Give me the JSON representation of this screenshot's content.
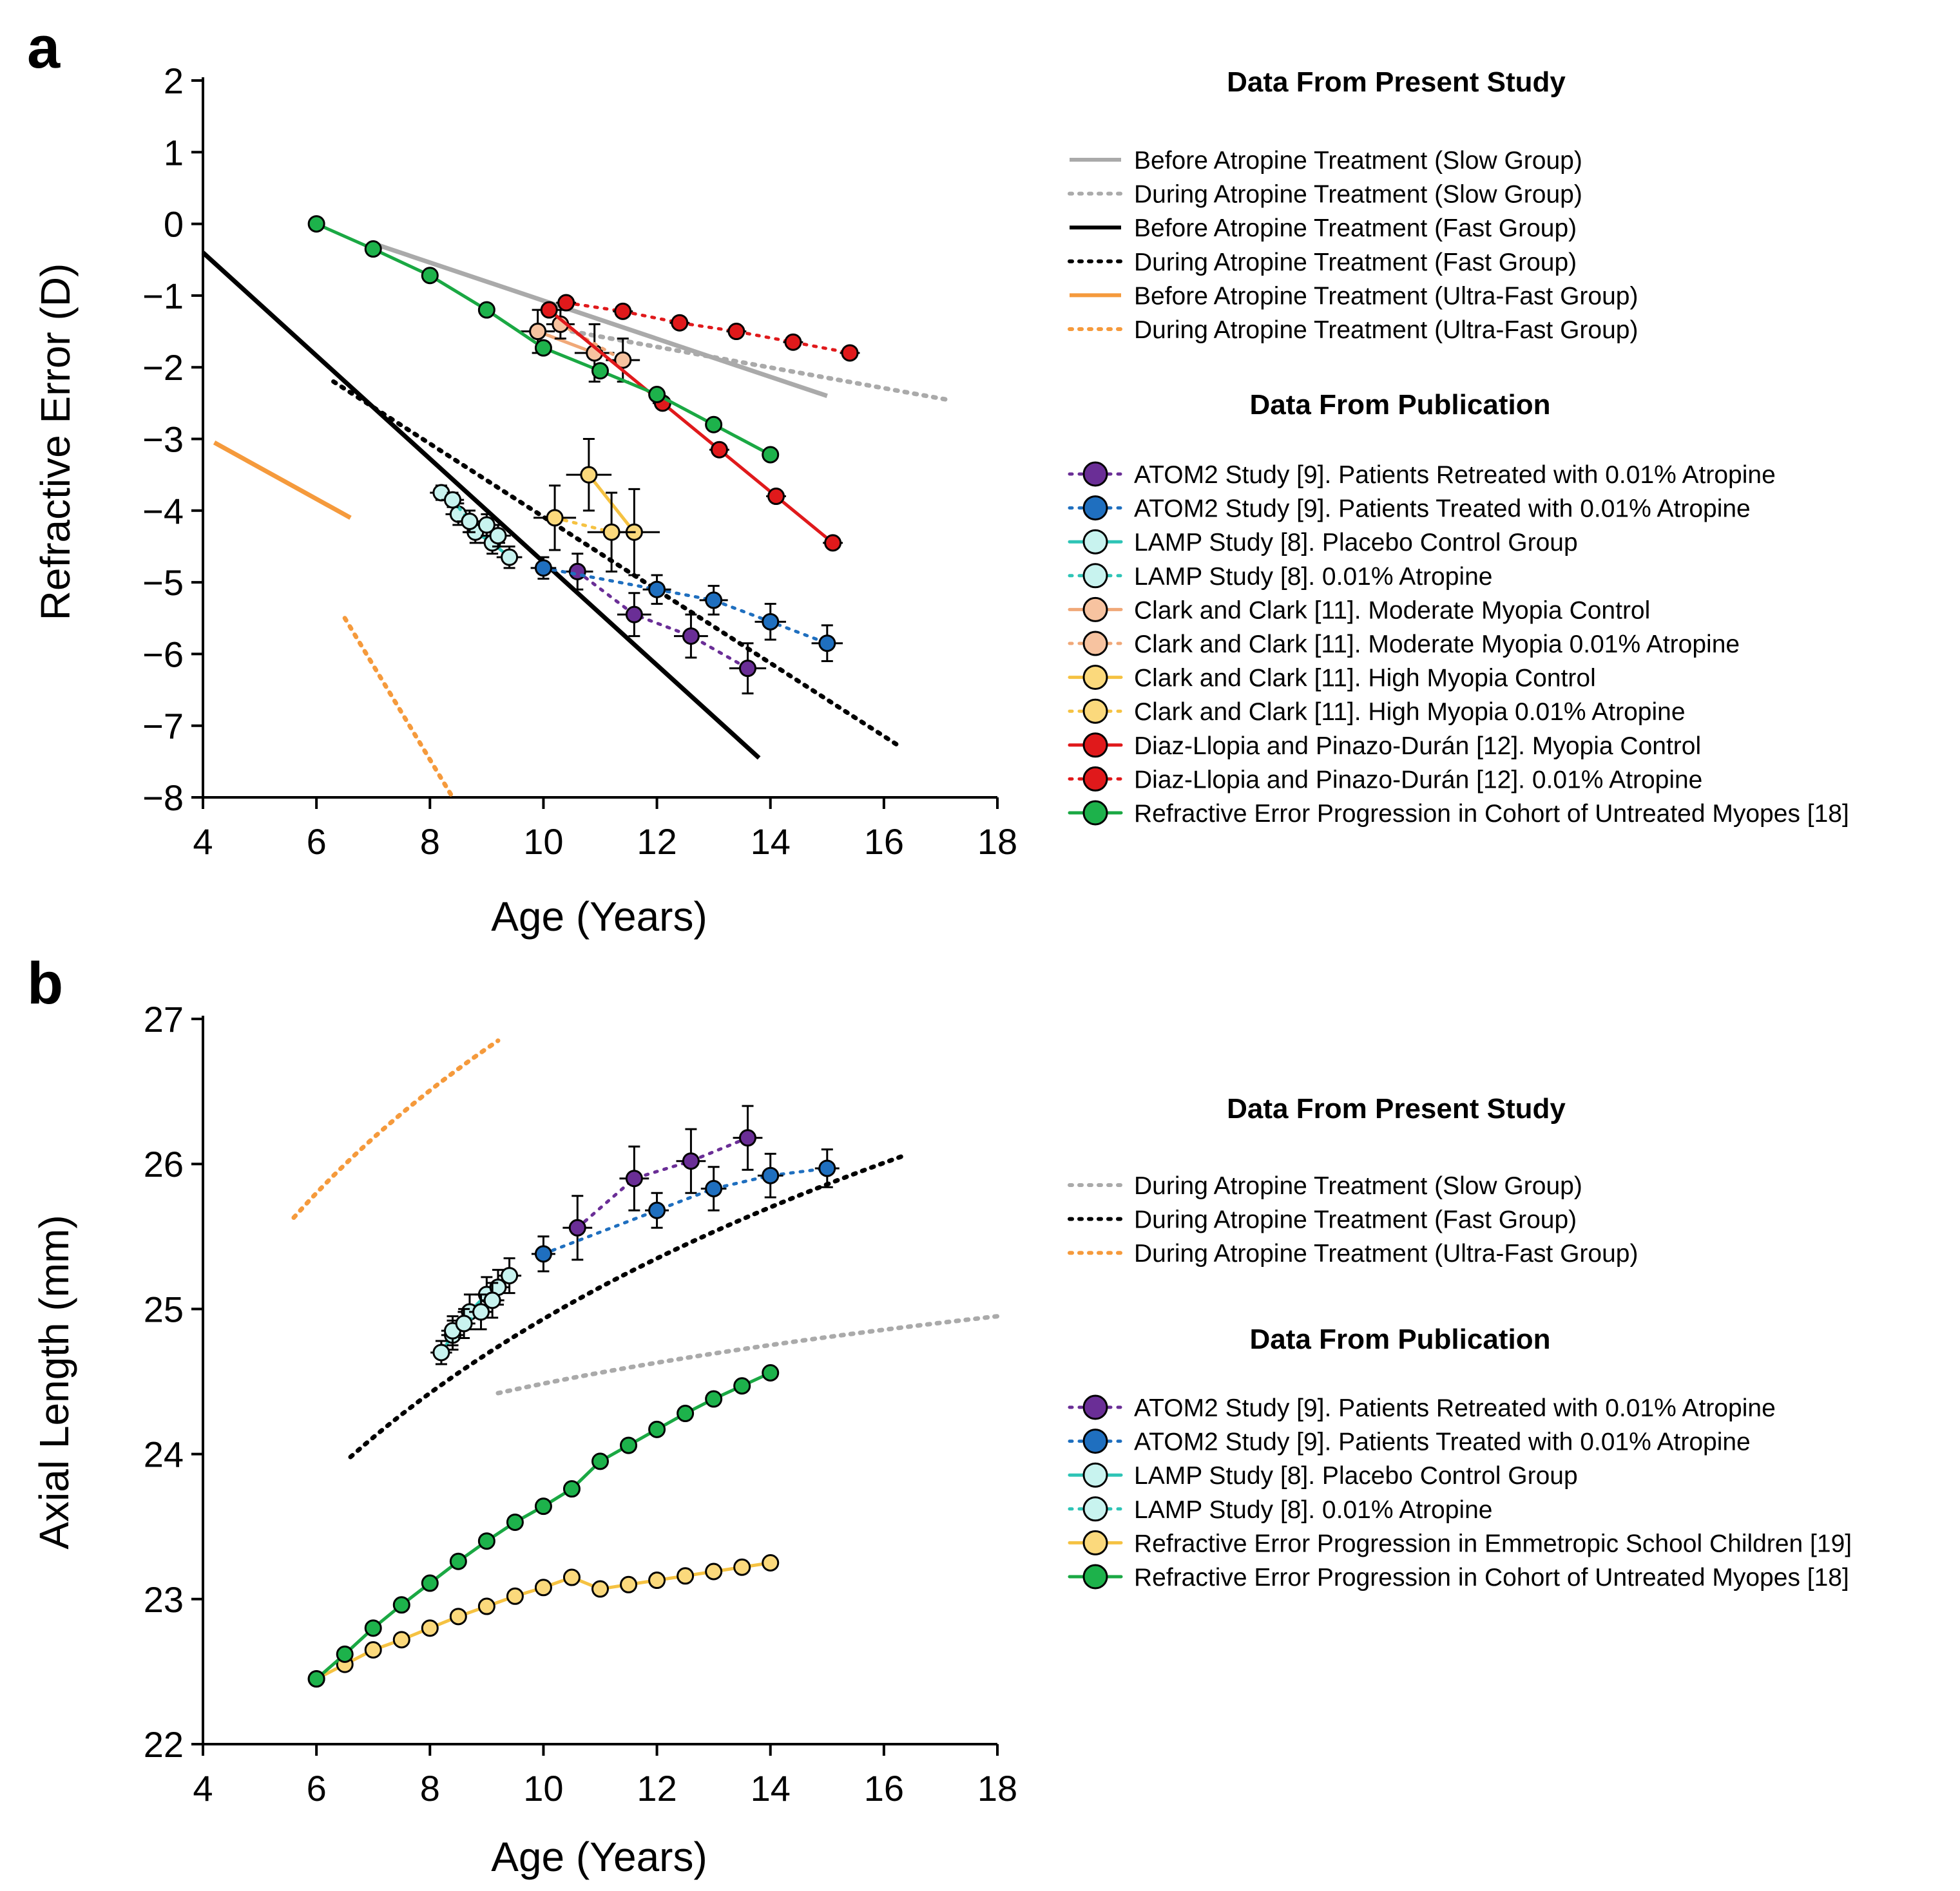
{
  "figure": {
    "colors": {
      "axis": "#000000",
      "gray": "#aaaaaa",
      "black": "#000000",
      "orange": "#f59a3c",
      "purple": "#6a2e96",
      "blue": "#1f6fbf",
      "teal": "#2ec4b6",
      "tealFill": "#c8f3ef",
      "peach": "#f0a878",
      "peachFill": "#f7c3a0",
      "yellow": "#f5c242",
      "yellowFill": "#fbd97c",
      "red": "#e0191b",
      "green": "#1aa843",
      "greenFill": "#1db24b"
    }
  },
  "chart_data": [
    {
      "type": "line",
      "panel_label": "a",
      "xlabel": "Age (Years)",
      "ylabel": "Refractive Error (D)",
      "xlim": [
        4,
        18
      ],
      "ylim": [
        -8,
        2
      ],
      "xticks": [
        "4",
        "6",
        "8",
        "10",
        "12",
        "14",
        "16",
        "18"
      ],
      "yticks": [
        "2",
        "1",
        "0",
        "−1",
        "−2",
        "−3",
        "−4",
        "−5",
        "−6",
        "−7",
        "−8"
      ],
      "legend_present_title": "Data From Present Study",
      "legend_publication_title": "Data From Publication",
      "present_series": [
        {
          "name": "Before Atropine Treatment (Slow Group)",
          "color": "gray",
          "style": "solid",
          "x": [
            7.1,
            15.0
          ],
          "y": [
            -0.3,
            -2.4
          ]
        },
        {
          "name": "During Atropine Treatment (Slow Group)",
          "color": "gray",
          "style": "dotted",
          "x": [
            10.5,
            17.1
          ],
          "y": [
            -1.5,
            -2.45
          ]
        },
        {
          "name": "Before Atropine Treatment (Fast Group)",
          "color": "black",
          "style": "solid",
          "x": [
            4.0,
            13.8
          ],
          "y": [
            -0.4,
            -7.45
          ]
        },
        {
          "name": "During Atropine Treatment (Fast Group)",
          "color": "black",
          "style": "dotted",
          "x": [
            6.3,
            16.3
          ],
          "y": [
            -2.2,
            -7.3
          ]
        },
        {
          "name": "Before Atropine Treatment (Ultra-Fast Group)",
          "color": "orange",
          "style": "solid",
          "x": [
            4.2,
            6.6
          ],
          "y": [
            -3.05,
            -4.1
          ]
        },
        {
          "name": "During Atropine Treatment (Ultra-Fast Group)",
          "color": "orange",
          "style": "dotted",
          "x": [
            6.5,
            8.4
          ],
          "y": [
            -5.5,
            -8.0
          ]
        }
      ],
      "publication_series": [
        {
          "name": "ATOM2 Study [9]. Patients Retreated with 0.01% Atropine",
          "color": "purple",
          "fill": "purple",
          "style": "dotted",
          "x": [
            10.6,
            11.6,
            12.6,
            13.6
          ],
          "y": [
            -4.85,
            -5.45,
            -5.75,
            -6.2
          ],
          "err": [
            0.25,
            0.3,
            0.3,
            0.35
          ]
        },
        {
          "name": "ATOM2 Study [9]. Patients Treated with 0.01% Atropine",
          "color": "blue",
          "fill": "blue",
          "style": "dotted",
          "x": [
            10.0,
            12.0,
            13.0,
            14.0,
            15.0
          ],
          "y": [
            -4.8,
            -5.1,
            -5.25,
            -5.55,
            -5.85
          ],
          "err": [
            0.15,
            0.2,
            0.2,
            0.25,
            0.25
          ]
        },
        {
          "name": "LAMP Study [8]. Placebo Control Group",
          "color": "teal",
          "fill": "tealFill",
          "style": "solid",
          "x": [
            8.2,
            8.5,
            8.8,
            9.1,
            9.4
          ],
          "y": [
            -3.75,
            -4.05,
            -4.3,
            -4.45,
            -4.65
          ],
          "err": [
            0.1,
            0.15,
            0.15,
            0.15,
            0.15
          ]
        },
        {
          "name": "LAMP Study [8]. 0.01% Atropine",
          "color": "teal",
          "fill": "tealFill",
          "style": "dotted",
          "x": [
            8.4,
            8.7,
            9.0,
            9.2
          ],
          "y": [
            -3.85,
            -4.15,
            -4.2,
            -4.35
          ],
          "err": [
            0.1,
            0.15,
            0.15,
            0.15
          ]
        },
        {
          "name": "Clark and Clark [11]. Moderate Myopia Control",
          "color": "peach",
          "fill": "peachFill",
          "style": "solid",
          "x": [
            9.9,
            10.9
          ],
          "y": [
            -1.5,
            -1.8
          ],
          "err": [
            0.3,
            0.4
          ]
        },
        {
          "name": "Clark and Clark [11]. Moderate Myopia 0.01% Atropine",
          "color": "peach",
          "fill": "peachFill",
          "style": "dotted",
          "x": [
            10.3,
            11.4
          ],
          "y": [
            -1.4,
            -1.9
          ],
          "err": [
            0.2,
            0.3
          ]
        },
        {
          "name": "Clark and Clark [11]. High Myopia Control",
          "color": "yellow",
          "fill": "yellowFill",
          "style": "solid",
          "x": [
            10.8,
            11.6
          ],
          "y": [
            -3.5,
            -4.3
          ],
          "err": [
            0.5,
            0.6
          ]
        },
        {
          "name": "Clark and Clark [11]. High Myopia 0.01% Atropine",
          "color": "yellow",
          "fill": "yellowFill",
          "style": "dotted",
          "x": [
            10.2,
            11.2
          ],
          "y": [
            -4.1,
            -4.3
          ],
          "err": [
            0.45,
            0.55
          ]
        },
        {
          "name": "Diaz-Llopia and Pinazo-Durán [12]. Myopia Control",
          "color": "red",
          "fill": "red",
          "style": "solid",
          "x": [
            10.1,
            12.1,
            13.1,
            14.1,
            15.1
          ],
          "y": [
            -1.2,
            -2.5,
            -3.15,
            -3.8,
            -4.45
          ],
          "err": [
            0.05,
            0.05,
            0.05,
            0.05,
            0.05
          ]
        },
        {
          "name": "Diaz-Llopia and Pinazo-Durán [12]. 0.01% Atropine",
          "color": "red",
          "fill": "red",
          "style": "dotted",
          "x": [
            10.4,
            11.4,
            12.4,
            13.4,
            14.4,
            15.4
          ],
          "y": [
            -1.1,
            -1.22,
            -1.38,
            -1.5,
            -1.65,
            -1.8
          ],
          "err": [
            0.05,
            0.05,
            0.05,
            0.05,
            0.05,
            0.05
          ]
        },
        {
          "name": "Refractive Error Progression in Cohort of Untreated Myopes [18]",
          "color": "green",
          "fill": "greenFill",
          "style": "solid",
          "x": [
            6,
            7,
            8,
            9,
            10,
            11,
            12,
            13,
            14
          ],
          "y": [
            0.0,
            -0.35,
            -0.72,
            -1.2,
            -1.73,
            -2.05,
            -2.38,
            -2.8,
            -3.22
          ],
          "err": [
            0,
            0,
            0,
            0,
            0,
            0,
            0,
            0,
            0
          ]
        }
      ]
    },
    {
      "type": "line",
      "panel_label": "b",
      "xlabel": "Age (Years)",
      "ylabel": "Axial Length (mm)",
      "xlim": [
        4,
        18
      ],
      "ylim": [
        22,
        27
      ],
      "xticks": [
        "4",
        "6",
        "8",
        "10",
        "12",
        "14",
        "16",
        "18"
      ],
      "yticks": [
        "27",
        "26",
        "25",
        "24",
        "23",
        "22"
      ],
      "legend_present_title": "Data From Present Study",
      "legend_publication_title": "Data From Publication",
      "present_series": [
        {
          "name": "During Atropine Treatment (Slow Group)",
          "color": "gray",
          "style": "dotted",
          "curve": "log",
          "x": [
            9.2,
            18.0
          ],
          "y": [
            24.42,
            24.95
          ]
        },
        {
          "name": "During Atropine Treatment (Fast Group)",
          "color": "black",
          "style": "dotted",
          "curve": "log",
          "x": [
            6.6,
            16.3
          ],
          "y": [
            23.98,
            26.05
          ]
        },
        {
          "name": "During Atropine Treatment (Ultra-Fast Group)",
          "color": "orange",
          "style": "dotted",
          "curve": "log",
          "x": [
            5.6,
            9.2
          ],
          "y": [
            25.63,
            26.85
          ]
        }
      ],
      "publication_series": [
        {
          "name": "ATOM2 Study [9]. Patients Retreated with 0.01% Atropine",
          "color": "purple",
          "fill": "purple",
          "style": "dotted",
          "x": [
            10.6,
            11.6,
            12.6,
            13.6
          ],
          "y": [
            25.56,
            25.9,
            26.02,
            26.18
          ],
          "err": [
            0.22,
            0.22,
            0.22,
            0.22
          ]
        },
        {
          "name": "ATOM2 Study [9]. Patients Treated with 0.01% Atropine",
          "color": "blue",
          "fill": "blue",
          "style": "dotted",
          "x": [
            10.0,
            12.0,
            13.0,
            14.0,
            15.0
          ],
          "y": [
            25.38,
            25.68,
            25.83,
            25.92,
            25.97
          ],
          "err": [
            0.12,
            0.12,
            0.15,
            0.15,
            0.13
          ]
        },
        {
          "name": "LAMP Study [8]. Placebo Control Group",
          "color": "teal",
          "fill": "tealFill",
          "style": "solid",
          "x": [
            8.2,
            8.4,
            8.7,
            9.0,
            9.2,
            9.4
          ],
          "y": [
            24.7,
            24.82,
            24.98,
            25.1,
            25.15,
            25.23
          ],
          "err": [
            0.08,
            0.1,
            0.12,
            0.12,
            0.12,
            0.12
          ]
        },
        {
          "name": "LAMP Study [8]. 0.01% Atropine",
          "color": "teal",
          "fill": "tealFill",
          "style": "dotted",
          "x": [
            8.4,
            8.6,
            8.9,
            9.1
          ],
          "y": [
            24.85,
            24.9,
            24.98,
            25.06
          ],
          "err": [
            0.1,
            0.1,
            0.12,
            0.12
          ]
        },
        {
          "name": "Refractive Error Progression in Emmetropic School Children [19]",
          "color": "yellow",
          "fill": "yellowFill",
          "style": "solid",
          "x": [
            6,
            6.5,
            7,
            7.5,
            8,
            8.5,
            9,
            9.5,
            10,
            10.5,
            11,
            11.5,
            12,
            12.5,
            13,
            13.5,
            14
          ],
          "y": [
            22.45,
            22.55,
            22.65,
            22.72,
            22.8,
            22.88,
            22.95,
            23.02,
            23.08,
            23.15,
            23.07,
            23.1,
            23.13,
            23.16,
            23.19,
            23.22,
            23.25
          ],
          "err": []
        },
        {
          "name": "Refractive Error Progression in Cohort of Untreated Myopes [18]",
          "color": "green",
          "fill": "greenFill",
          "style": "solid",
          "x": [
            6,
            6.5,
            7,
            7.5,
            8,
            8.5,
            9,
            9.5,
            10,
            10.5,
            11,
            11.5,
            12,
            12.5,
            13,
            13.5,
            14
          ],
          "y": [
            22.45,
            22.62,
            22.8,
            22.96,
            23.11,
            23.26,
            23.4,
            23.53,
            23.64,
            23.76,
            23.95,
            24.06,
            24.17,
            24.28,
            24.38,
            24.47,
            24.56
          ],
          "err": []
        }
      ]
    }
  ]
}
